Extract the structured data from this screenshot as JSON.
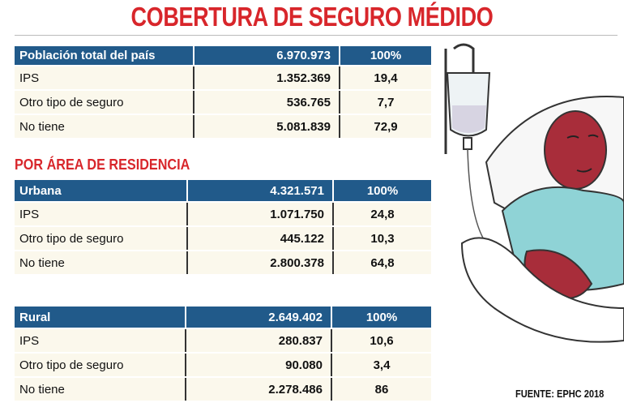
{
  "title": "COBERTURA DE SEGURO MÉDIDO",
  "tables": [
    {
      "header": [
        "Población total del país",
        "6.970.973",
        "100%"
      ],
      "rows": [
        [
          "IPS",
          "1.352.369",
          "19,4"
        ],
        [
          "Otro tipo de seguro",
          "536.765",
          "7,7"
        ],
        [
          "No tiene",
          "5.081.839",
          "72,9"
        ]
      ]
    },
    {
      "header": [
        "Urbana",
        "4.321.571",
        "100%"
      ],
      "rows": [
        [
          "IPS",
          "1.071.750",
          "24,8"
        ],
        [
          "Otro tipo de seguro",
          "445.122",
          "10,3"
        ],
        [
          "No tiene",
          "2.800.378",
          "64,8"
        ]
      ]
    },
    {
      "header": [
        "Rural",
        "2.649.402",
        "100%"
      ],
      "rows": [
        [
          "IPS",
          "280.837",
          "10,6"
        ],
        [
          "Otro tipo de seguro",
          "90.080",
          "3,4"
        ],
        [
          "No tiene",
          "2.278.486",
          "86"
        ]
      ]
    }
  ],
  "section_heading": "POR ÁREA DE RESIDENCIA",
  "source": "FUENTE: EPHC 2018"
}
